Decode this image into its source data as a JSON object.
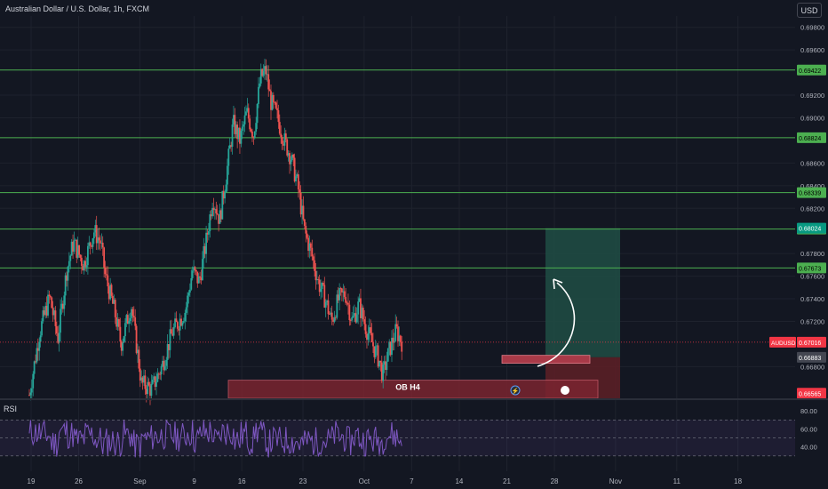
{
  "header": {
    "symbol_title": "Australian Dollar / U.S. Dollar, 1h, FXCM",
    "currency": "USD"
  },
  "colors": {
    "background": "#131722",
    "up": "#26a69a",
    "down": "#ef5350",
    "level_line": "#4caf50",
    "rsi_line": "#7e57c2",
    "target_zone": "#1f4a43",
    "stop_zone": "#5a1f26",
    "ob_zone": "#7a2530"
  },
  "chart_data": {
    "type": "candlestick",
    "instrument": "AUDUSD",
    "y_axis_ticks": [
      "0.69800",
      "0.69600",
      "0.69200",
      "0.69000",
      "0.68600",
      "0.68400",
      "0.68200",
      "0.67800",
      "0.67600",
      "0.67400",
      "0.67200",
      "0.66800"
    ],
    "x_axis_ticks": [
      "19",
      "26",
      "Sep",
      "9",
      "16",
      "23",
      "Oct",
      "7",
      "14",
      "21",
      "28",
      "Nov",
      "11",
      "18"
    ],
    "ylim": [
      0.6652,
      0.699
    ],
    "price_path": [
      {
        "d": 0.0,
        "p": 0.6655
      },
      {
        "d": 1.5,
        "p": 0.671
      },
      {
        "d": 3.0,
        "p": 0.6742
      },
      {
        "d": 4.2,
        "p": 0.6705
      },
      {
        "d": 5.5,
        "p": 0.6765
      },
      {
        "d": 6.5,
        "p": 0.679
      },
      {
        "d": 8.0,
        "p": 0.677
      },
      {
        "d": 9.5,
        "p": 0.68
      },
      {
        "d": 10.5,
        "p": 0.679
      },
      {
        "d": 11.2,
        "p": 0.676
      },
      {
        "d": 12.5,
        "p": 0.673
      },
      {
        "d": 13.5,
        "p": 0.67
      },
      {
        "d": 15.0,
        "p": 0.6735
      },
      {
        "d": 16.5,
        "p": 0.6665
      },
      {
        "d": 18.0,
        "p": 0.666
      },
      {
        "d": 19.5,
        "p": 0.668
      },
      {
        "d": 21.0,
        "p": 0.671
      },
      {
        "d": 23.0,
        "p": 0.673
      },
      {
        "d": 24.0,
        "p": 0.6765
      },
      {
        "d": 25.0,
        "p": 0.6755
      },
      {
        "d": 26.0,
        "p": 0.679
      },
      {
        "d": 27.0,
        "p": 0.683
      },
      {
        "d": 28.0,
        "p": 0.681
      },
      {
        "d": 29.0,
        "p": 0.685
      },
      {
        "d": 30.0,
        "p": 0.6895
      },
      {
        "d": 31.0,
        "p": 0.688
      },
      {
        "d": 32.0,
        "p": 0.6905
      },
      {
        "d": 33.0,
        "p": 0.6885
      },
      {
        "d": 34.0,
        "p": 0.6935
      },
      {
        "d": 34.8,
        "p": 0.6942
      },
      {
        "d": 35.5,
        "p": 0.6915
      },
      {
        "d": 36.5,
        "p": 0.69
      },
      {
        "d": 37.5,
        "p": 0.688
      },
      {
        "d": 38.5,
        "p": 0.6865
      },
      {
        "d": 39.5,
        "p": 0.684
      },
      {
        "d": 40.5,
        "p": 0.68
      },
      {
        "d": 41.5,
        "p": 0.678
      },
      {
        "d": 42.5,
        "p": 0.6755
      },
      {
        "d": 43.5,
        "p": 0.674
      },
      {
        "d": 44.5,
        "p": 0.672
      },
      {
        "d": 45.5,
        "p": 0.674
      },
      {
        "d": 46.5,
        "p": 0.6745
      },
      {
        "d": 47.5,
        "p": 0.672
      },
      {
        "d": 48.5,
        "p": 0.6735
      },
      {
        "d": 49.5,
        "p": 0.6715
      },
      {
        "d": 50.5,
        "p": 0.67
      },
      {
        "d": 51.5,
        "p": 0.6685
      },
      {
        "d": 52.0,
        "p": 0.6672
      },
      {
        "d": 53.0,
        "p": 0.6695
      },
      {
        "d": 54.0,
        "p": 0.6712
      },
      {
        "d": 54.8,
        "p": 0.6702
      }
    ],
    "horizontal_levels": [
      {
        "label": "0.69422",
        "value": 0.69422
      },
      {
        "label": "0.68824",
        "value": 0.68824
      },
      {
        "label": "0.68339",
        "value": 0.68339
      },
      {
        "label": "0.68016",
        "value": 0.68016
      },
      {
        "label": "0.67673",
        "value": 0.67673
      }
    ],
    "price_labels": [
      {
        "name": "target",
        "label": "0.68024",
        "value": 0.68024,
        "color": "#089981"
      },
      {
        "name": "current",
        "label": "0.67016",
        "value": 0.67016,
        "color": "#f23645",
        "tag": "AUDUSD"
      },
      {
        "name": "entry",
        "label": "0.66883",
        "value": 0.66883,
        "color": "#434651"
      },
      {
        "name": "stop",
        "label": "0.66565",
        "value": 0.66565,
        "color": "#f23645"
      }
    ],
    "annotations": {
      "ob_label": "OB H4"
    },
    "rsi": {
      "label": "RSI",
      "ticks": [
        "80.00",
        "60.00",
        "40.00"
      ],
      "upper": 70,
      "lower": 30,
      "ylim": [
        15,
        90
      ]
    }
  }
}
